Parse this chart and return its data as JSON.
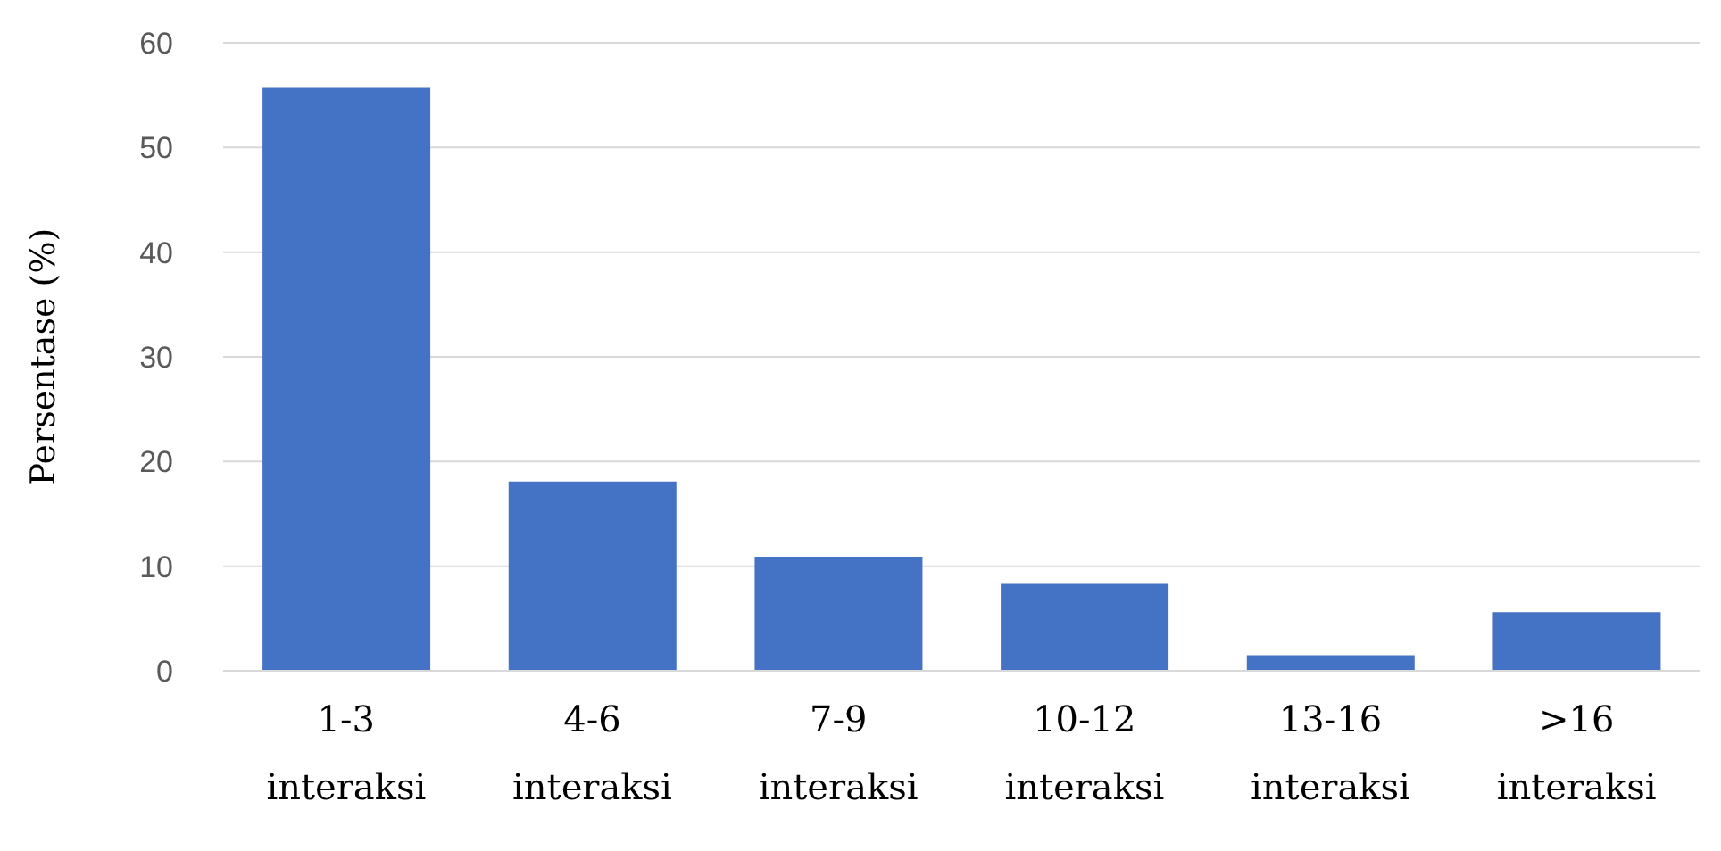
{
  "chart_data": {
    "type": "bar",
    "ylabel": "Persentase (%)",
    "categories": [
      "1-3\ninteraksi",
      "4-6\ninteraksi",
      "7-9\ninteraksi",
      "10-12\ninteraksi",
      "13-16\ninteraksi",
      ">16\ninteraksi"
    ],
    "values": [
      55.7,
      18.1,
      10.9,
      8.3,
      1.5,
      5.6
    ],
    "color": "#4472c4",
    "ylim": [
      0,
      60
    ],
    "yticks": [
      0,
      10,
      20,
      30,
      40,
      50,
      60
    ],
    "grid": "y"
  }
}
